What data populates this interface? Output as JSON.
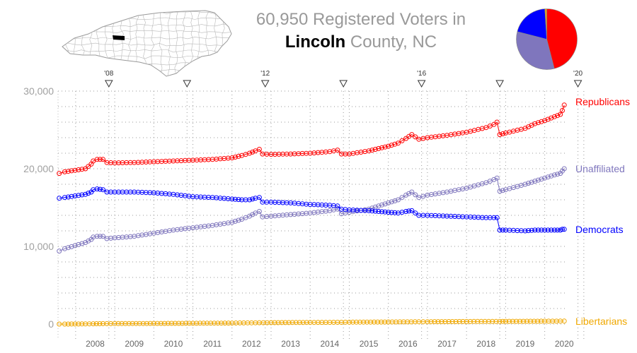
{
  "title": {
    "line1": "60,950 Registered Voters in",
    "county": "Lincoln",
    "line2_rest": " County, NC"
  },
  "colors": {
    "republicans": "#ff0000",
    "unaffiliated": "#7f76bd",
    "democrats": "#0000ff",
    "libertarians": "#f0a800",
    "map_highlight": "#000000"
  },
  "pie": {
    "slices": [
      {
        "name": "Republicans",
        "share": 0.46,
        "color": "#ff0000"
      },
      {
        "name": "Unaffiliated",
        "share": 0.33,
        "color": "#7f76bd"
      },
      {
        "name": "Democrats",
        "share": 0.2,
        "color": "#0000ff"
      },
      {
        "name": "Libertarians",
        "share": 0.01,
        "color": "#f0a800"
      }
    ]
  },
  "chart_data": {
    "type": "line",
    "y_ticks": [
      "0",
      "10,000",
      "20,000",
      "30,000"
    ],
    "ylim": [
      0,
      30000
    ],
    "xlim": [
      2007.55,
      2020.55
    ],
    "x_tick_labels": [
      "2008",
      "2009",
      "2010",
      "2011",
      "2012",
      "2013",
      "2014",
      "2015",
      "2016",
      "2017",
      "2018",
      "2019",
      "2020"
    ],
    "election_markers": [
      {
        "year": 2008.85,
        "label": "'08"
      },
      {
        "year": 2010.85,
        "label": ""
      },
      {
        "year": 2012.85,
        "label": "'12"
      },
      {
        "year": 2014.85,
        "label": ""
      },
      {
        "year": 2016.85,
        "label": "'16"
      },
      {
        "year": 2018.85,
        "label": ""
      },
      {
        "year": 2020.85,
        "label": "'20"
      }
    ],
    "grid": true,
    "series": [
      {
        "name": "Republicans",
        "color": "#ff0000",
        "points": [
          [
            2007.58,
            19400
          ],
          [
            2007.72,
            19600
          ],
          [
            2008.25,
            20000
          ],
          [
            2008.4,
            20600
          ],
          [
            2008.45,
            21000
          ],
          [
            2008.55,
            21200
          ],
          [
            2008.7,
            21200
          ],
          [
            2008.8,
            20800
          ],
          [
            2009.0,
            20750
          ],
          [
            2009.5,
            20800
          ],
          [
            2010.0,
            20900
          ],
          [
            2010.5,
            21000
          ],
          [
            2011.0,
            21100
          ],
          [
            2011.5,
            21200
          ],
          [
            2012.0,
            21400
          ],
          [
            2012.25,
            21700
          ],
          [
            2012.45,
            22000
          ],
          [
            2012.6,
            22300
          ],
          [
            2012.7,
            22500
          ],
          [
            2012.78,
            21900
          ],
          [
            2013.0,
            21850
          ],
          [
            2013.5,
            21900
          ],
          [
            2014.0,
            22000
          ],
          [
            2014.5,
            22200
          ],
          [
            2014.7,
            22400
          ],
          [
            2014.8,
            21900
          ],
          [
            2015.0,
            21900
          ],
          [
            2015.5,
            22300
          ],
          [
            2015.75,
            22600
          ],
          [
            2016.0,
            22900
          ],
          [
            2016.25,
            23300
          ],
          [
            2016.45,
            23900
          ],
          [
            2016.6,
            24400
          ],
          [
            2016.78,
            23800
          ],
          [
            2017.0,
            24000
          ],
          [
            2017.5,
            24300
          ],
          [
            2018.0,
            24700
          ],
          [
            2018.5,
            25300
          ],
          [
            2018.7,
            25700
          ],
          [
            2018.78,
            26000
          ],
          [
            2018.85,
            24400
          ],
          [
            2019.0,
            24600
          ],
          [
            2019.5,
            25200
          ],
          [
            2019.75,
            25800
          ],
          [
            2020.0,
            26200
          ],
          [
            2020.25,
            26700
          ],
          [
            2020.4,
            27000
          ],
          [
            2020.45,
            27500
          ],
          [
            2020.5,
            28200
          ]
        ]
      },
      {
        "name": "Unaffiliated",
        "color": "#7f76bd",
        "points": [
          [
            2007.58,
            9400
          ],
          [
            2007.72,
            9700
          ],
          [
            2008.25,
            10500
          ],
          [
            2008.4,
            10900
          ],
          [
            2008.45,
            11200
          ],
          [
            2008.55,
            11300
          ],
          [
            2008.7,
            11300
          ],
          [
            2008.8,
            11000
          ],
          [
            2009.0,
            11100
          ],
          [
            2009.5,
            11300
          ],
          [
            2010.0,
            11700
          ],
          [
            2010.5,
            12100
          ],
          [
            2011.0,
            12400
          ],
          [
            2011.5,
            12700
          ],
          [
            2012.0,
            13100
          ],
          [
            2012.25,
            13500
          ],
          [
            2012.45,
            13900
          ],
          [
            2012.6,
            14300
          ],
          [
            2012.7,
            14500
          ],
          [
            2012.78,
            13800
          ],
          [
            2013.0,
            13900
          ],
          [
            2013.5,
            14100
          ],
          [
            2014.0,
            14300
          ],
          [
            2014.5,
            14600
          ],
          [
            2014.7,
            14800
          ],
          [
            2014.8,
            14200
          ],
          [
            2015.0,
            14400
          ],
          [
            2015.5,
            14800
          ],
          [
            2015.75,
            15200
          ],
          [
            2016.0,
            15600
          ],
          [
            2016.25,
            16000
          ],
          [
            2016.45,
            16600
          ],
          [
            2016.6,
            17000
          ],
          [
            2016.78,
            16300
          ],
          [
            2017.0,
            16600
          ],
          [
            2017.5,
            17000
          ],
          [
            2018.0,
            17500
          ],
          [
            2018.5,
            18200
          ],
          [
            2018.7,
            18600
          ],
          [
            2018.78,
            18800
          ],
          [
            2018.85,
            17100
          ],
          [
            2019.0,
            17300
          ],
          [
            2019.5,
            18000
          ],
          [
            2019.75,
            18400
          ],
          [
            2020.0,
            18800
          ],
          [
            2020.25,
            19200
          ],
          [
            2020.4,
            19400
          ],
          [
            2020.45,
            19700
          ],
          [
            2020.5,
            20000
          ]
        ]
      },
      {
        "name": "Democrats",
        "color": "#0000ff",
        "points": [
          [
            2007.58,
            16200
          ],
          [
            2007.72,
            16300
          ],
          [
            2008.25,
            16700
          ],
          [
            2008.4,
            17000
          ],
          [
            2008.45,
            17300
          ],
          [
            2008.55,
            17400
          ],
          [
            2008.7,
            17300
          ],
          [
            2008.8,
            17000
          ],
          [
            2009.0,
            17000
          ],
          [
            2009.5,
            17000
          ],
          [
            2010.0,
            16900
          ],
          [
            2010.5,
            16700
          ],
          [
            2011.0,
            16400
          ],
          [
            2011.5,
            16300
          ],
          [
            2012.0,
            16100
          ],
          [
            2012.25,
            16000
          ],
          [
            2012.45,
            16000
          ],
          [
            2012.6,
            16200
          ],
          [
            2012.7,
            16300
          ],
          [
            2012.78,
            15700
          ],
          [
            2013.0,
            15700
          ],
          [
            2013.5,
            15600
          ],
          [
            2014.0,
            15400
          ],
          [
            2014.5,
            15300
          ],
          [
            2014.7,
            15200
          ],
          [
            2014.8,
            14800
          ],
          [
            2015.0,
            14700
          ],
          [
            2015.5,
            14600
          ],
          [
            2015.75,
            14500
          ],
          [
            2016.0,
            14400
          ],
          [
            2016.25,
            14300
          ],
          [
            2016.45,
            14500
          ],
          [
            2016.6,
            14600
          ],
          [
            2016.78,
            14000
          ],
          [
            2017.0,
            14000
          ],
          [
            2017.5,
            13900
          ],
          [
            2018.0,
            13800
          ],
          [
            2018.5,
            13700
          ],
          [
            2018.7,
            13700
          ],
          [
            2018.78,
            13700
          ],
          [
            2018.85,
            12100
          ],
          [
            2019.0,
            12100
          ],
          [
            2019.5,
            12000
          ],
          [
            2019.75,
            12100
          ],
          [
            2020.0,
            12100
          ],
          [
            2020.25,
            12100
          ],
          [
            2020.4,
            12100
          ],
          [
            2020.45,
            12200
          ],
          [
            2020.5,
            12200
          ]
        ]
      },
      {
        "name": "Libertarians",
        "color": "#f0a800",
        "points": [
          [
            2007.58,
            0
          ],
          [
            2007.72,
            0
          ],
          [
            2008.25,
            20
          ],
          [
            2008.45,
            40
          ],
          [
            2008.7,
            50
          ],
          [
            2009.0,
            60
          ],
          [
            2010.0,
            80
          ],
          [
            2011.0,
            100
          ],
          [
            2012.0,
            130
          ],
          [
            2012.7,
            170
          ],
          [
            2013.0,
            180
          ],
          [
            2014.0,
            210
          ],
          [
            2014.8,
            230
          ],
          [
            2015.0,
            240
          ],
          [
            2016.0,
            270
          ],
          [
            2016.78,
            290
          ],
          [
            2017.0,
            300
          ],
          [
            2018.0,
            330
          ],
          [
            2018.85,
            340
          ],
          [
            2019.0,
            350
          ],
          [
            2020.0,
            370
          ],
          [
            2020.5,
            380
          ]
        ]
      }
    ]
  }
}
